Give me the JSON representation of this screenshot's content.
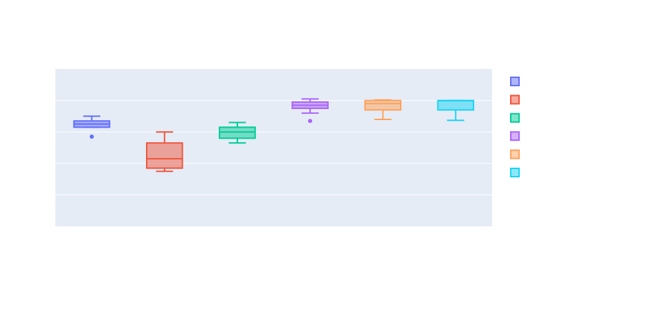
{
  "chart_data": {
    "type": "box",
    "title": "",
    "xlabel": "",
    "ylabel": "",
    "ylim": [
      0,
      5
    ],
    "grid": true,
    "legend_placement": "right",
    "colors": {
      "plot_background": "#e5ecf6",
      "grid": "#ffffff",
      "page_background": "#ffffff"
    },
    "series": [
      {
        "color": "#636efa",
        "whisker_low": 3.15,
        "q1": 3.15,
        "median": 3.25,
        "q3": 3.35,
        "whisker_high": 3.5,
        "outliers": [
          2.85
        ]
      },
      {
        "color": "#ef553b",
        "whisker_low": 1.75,
        "q1": 1.85,
        "median": 2.15,
        "q3": 2.65,
        "whisker_high": 3.0,
        "outliers": []
      },
      {
        "color": "#00cc96",
        "whisker_low": 2.65,
        "q1": 2.8,
        "median": 3.0,
        "q3": 3.15,
        "whisker_high": 3.3,
        "outliers": []
      },
      {
        "color": "#ab63fa",
        "whisker_low": 3.6,
        "q1": 3.75,
        "median": 3.85,
        "q3": 3.95,
        "whisker_high": 4.05,
        "outliers": [
          3.35
        ]
      },
      {
        "color": "#ffa15a",
        "whisker_low": 3.4,
        "q1": 3.7,
        "median": 3.9,
        "q3": 4.0,
        "whisker_high": 4.02,
        "outliers": []
      },
      {
        "color": "#19d3f3",
        "whisker_low": 3.37,
        "q1": 3.7,
        "median": 3.99,
        "q3": 4.0,
        "whisker_high": 4.0,
        "outliers": []
      }
    ]
  }
}
